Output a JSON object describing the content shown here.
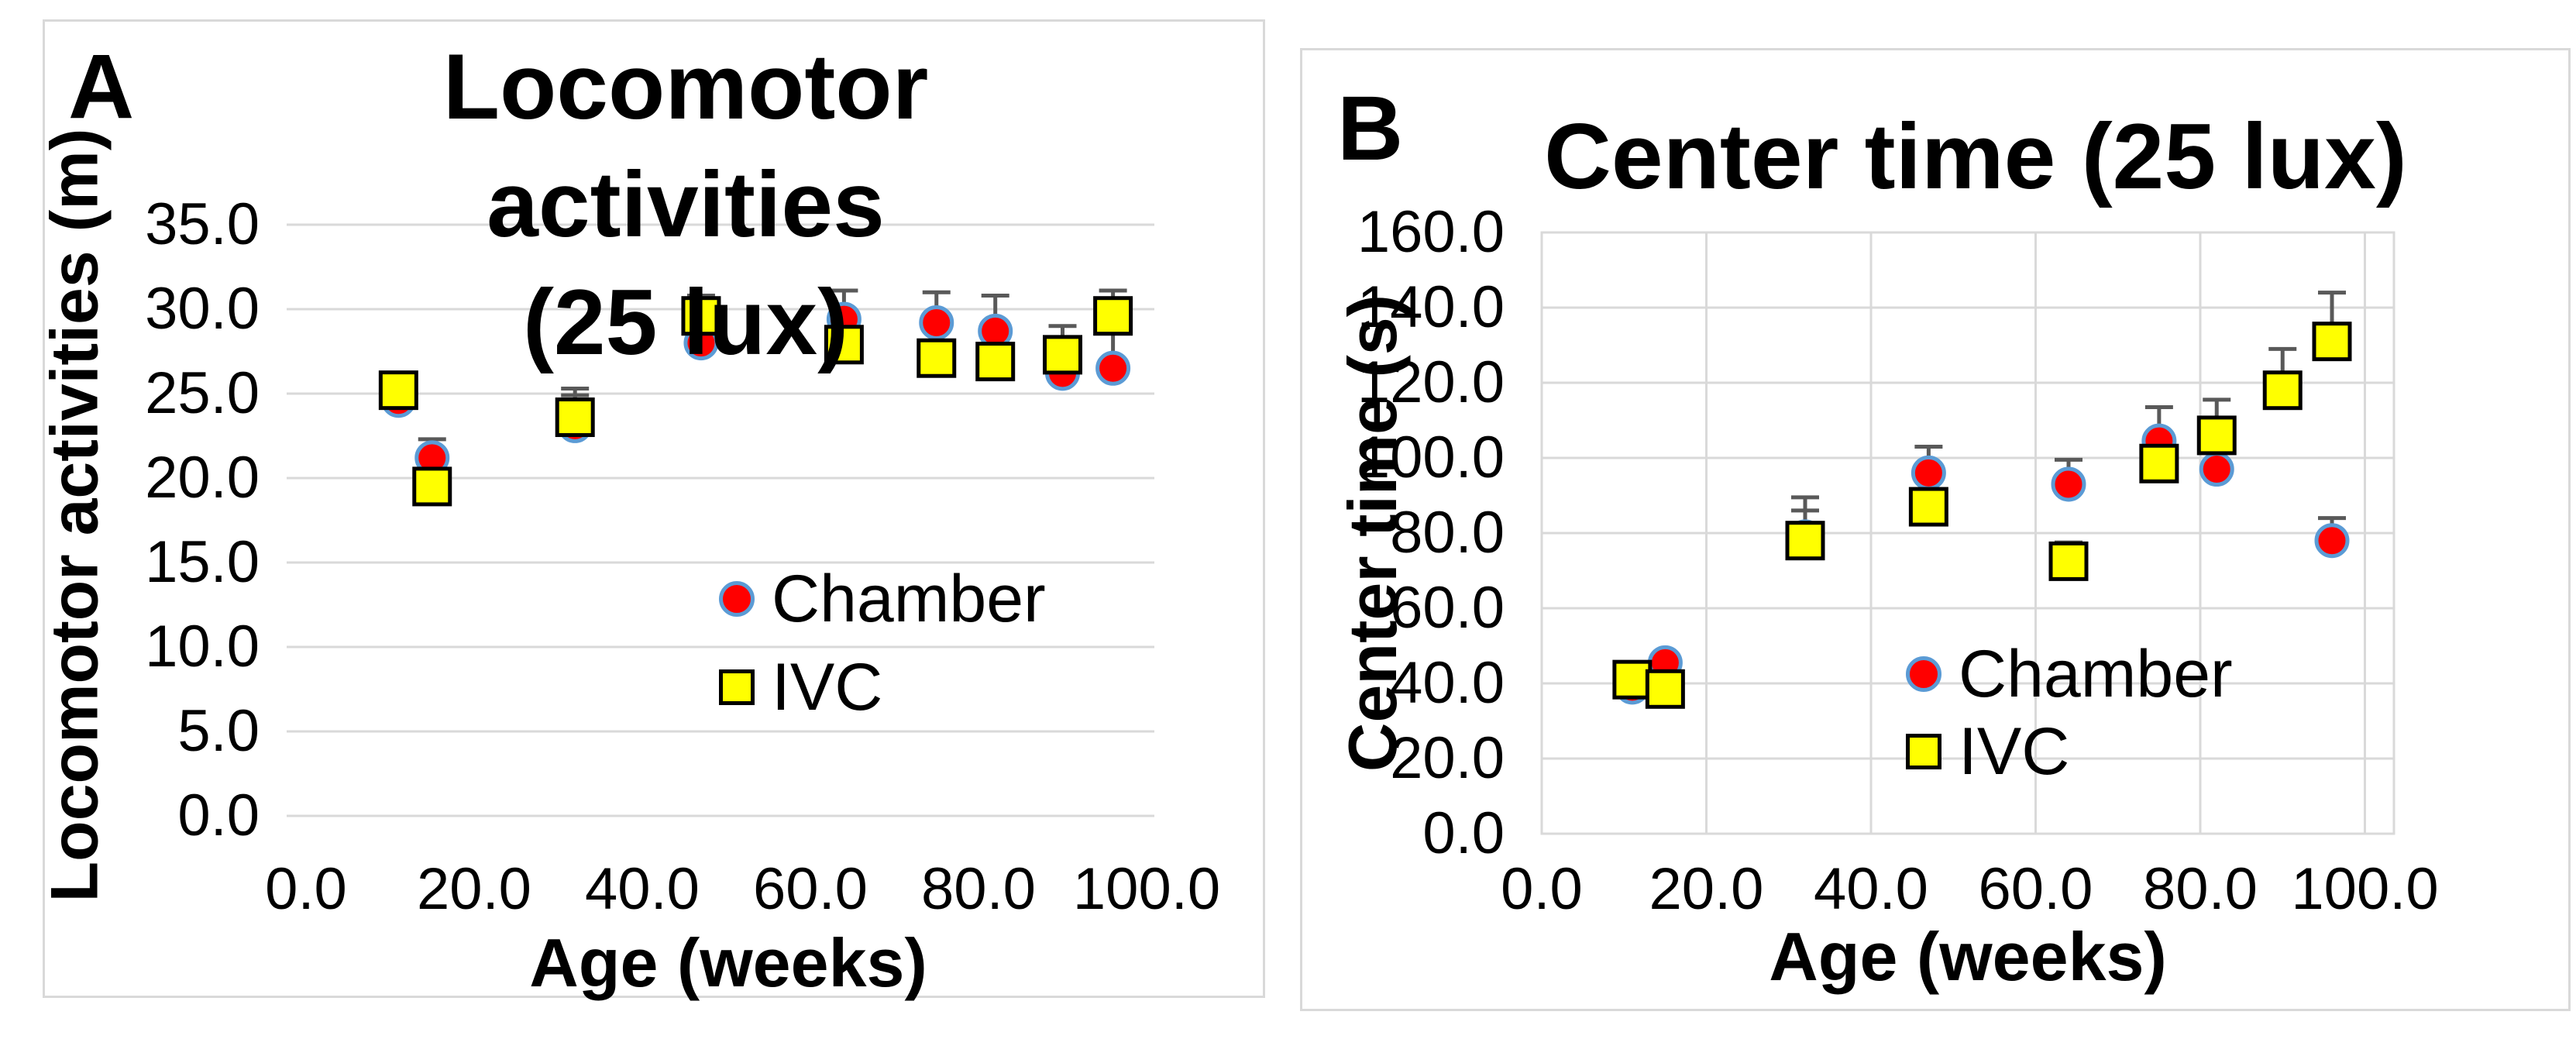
{
  "figure": {
    "background": "#FFFFFF",
    "panel_border_color": "#D9D9D9"
  },
  "colors": {
    "chamber_fill": "#FF0000",
    "chamber_outline": "#5B9BD5",
    "ivc_fill": "#FFFF00",
    "ivc_outline": "#000000",
    "gridline": "#D9D9D9",
    "error_bar": "#595959",
    "text": "#000000"
  },
  "chart_data": [
    {
      "type": "scatter",
      "panel_label": "A",
      "title": "Locomotor activities (25 lux)",
      "title_lines": [
        "Locomotor activities",
        "(25 lux)"
      ],
      "xlabel": "Age (weeks)",
      "ylabel": "Locomotor activities (m)",
      "xlim": [
        0,
        100
      ],
      "ylim": [
        0,
        35
      ],
      "x_ticks": [
        0,
        20,
        40,
        60,
        80,
        100
      ],
      "y_ticks": [
        0,
        5,
        10,
        15,
        20,
        25,
        30,
        35
      ],
      "tick_decimals": 1,
      "grid": "horizontal-only",
      "legend_position": "inside-center-right",
      "x": [
        11,
        15,
        32,
        47,
        64,
        75,
        82,
        90,
        96
      ],
      "series": [
        {
          "name": "Chamber",
          "marker": "circle",
          "values": [
            24.6,
            21.2,
            23.1,
            28.0,
            29.4,
            29.2,
            28.7,
            26.2,
            26.5
          ],
          "sem_upper": [
            0.4,
            1.1,
            2.2,
            0.3,
            1.7,
            1.8,
            2.1,
            0.4,
            2.4
          ]
        },
        {
          "name": "IVC",
          "marker": "square",
          "values": [
            25.2,
            19.5,
            23.6,
            29.6,
            27.9,
            27.1,
            26.9,
            27.3,
            29.6
          ],
          "sem_upper": [
            0.4,
            0.4,
            1.3,
            1.2,
            0.4,
            0.4,
            0.4,
            1.7,
            1.5
          ]
        }
      ]
    },
    {
      "type": "scatter",
      "panel_label": "B",
      "title": "Center time (25 lux)",
      "title_lines": [
        "Center time (25 lux)"
      ],
      "xlabel": "Age (weeks)",
      "ylabel": "Center time (s)",
      "xlim": [
        0,
        100
      ],
      "ylim": [
        0,
        160
      ],
      "x_ticks": [
        0,
        20,
        40,
        60,
        80,
        100
      ],
      "y_ticks": [
        0,
        20,
        40,
        60,
        80,
        100,
        120,
        140,
        160
      ],
      "tick_decimals": 1,
      "grid": "both",
      "legend_position": "inside-center",
      "x": [
        11,
        15,
        32,
        47,
        64,
        75,
        82,
        90,
        96
      ],
      "series": [
        {
          "name": "Chamber",
          "marker": "circle",
          "values": [
            39.0,
            45.5,
            79.0,
            96.0,
            93.0,
            104.5,
            97.0,
            117.5,
            78.0
          ],
          "sem_upper": [
            2,
            2,
            10.5,
            7,
            6.5,
            9,
            2,
            2,
            6
          ]
        },
        {
          "name": "IVC",
          "marker": "square",
          "values": [
            41.0,
            38.5,
            78.0,
            87.0,
            72.5,
            98.5,
            106.0,
            118.0,
            131.0
          ],
          "sem_upper": [
            2,
            2,
            8,
            2,
            5,
            2,
            9.5,
            11,
            13
          ]
        }
      ]
    }
  ]
}
